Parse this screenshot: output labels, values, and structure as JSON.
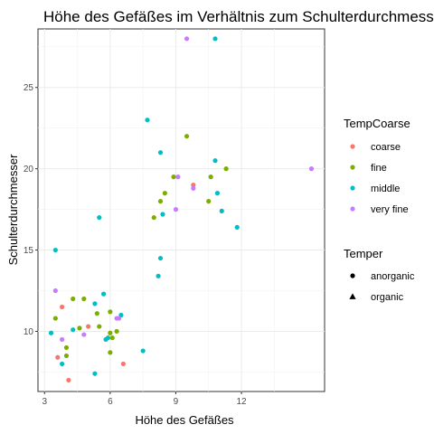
{
  "chart_data": {
    "type": "scatter",
    "title": "Höhe des Gefäßes im Verhältnis zum Schulterdurchmesser",
    "xlabel": "Höhe des Gefäßes",
    "ylabel": "Schulterdurchmesser",
    "xlim": [
      2.7,
      15.8
    ],
    "ylim": [
      6.3,
      28.6
    ],
    "xticks": [
      3,
      6,
      9,
      12
    ],
    "yticks": [
      10,
      15,
      20,
      25
    ],
    "grid": true,
    "legend_placement": "right",
    "color_legend": {
      "title": "TempCoarse",
      "entries": [
        {
          "key": "coarse",
          "label": "coarse",
          "color": "#F8766D"
        },
        {
          "key": "fine",
          "label": "fine",
          "color": "#7CAE00"
        },
        {
          "key": "middle",
          "label": "middle",
          "color": "#00BFC4"
        },
        {
          "key": "very fine",
          "label": "very fine",
          "color": "#C77CFF"
        }
      ]
    },
    "shape_legend": {
      "title": "Temper",
      "entries": [
        {
          "key": "anorganic",
          "label": "anorganic",
          "shape": "circle"
        },
        {
          "key": "organic",
          "label": "organic",
          "shape": "triangle"
        }
      ]
    },
    "points": [
      {
        "x": 9.5,
        "y": 28.0,
        "c": "very fine",
        "s": "organic"
      },
      {
        "x": 10.8,
        "y": 28.0,
        "c": "middle",
        "s": "organic"
      },
      {
        "x": 7.7,
        "y": 23.0,
        "c": "middle",
        "s": "organic"
      },
      {
        "x": 9.5,
        "y": 22.0,
        "c": "fine",
        "s": "organic"
      },
      {
        "x": 8.3,
        "y": 21.0,
        "c": "middle",
        "s": "anorganic"
      },
      {
        "x": 10.8,
        "y": 20.5,
        "c": "middle",
        "s": "anorganic"
      },
      {
        "x": 11.3,
        "y": 20.0,
        "c": "fine",
        "s": "organic"
      },
      {
        "x": 15.2,
        "y": 20.0,
        "c": "very fine",
        "s": "organic"
      },
      {
        "x": 8.9,
        "y": 19.5,
        "c": "fine",
        "s": "organic"
      },
      {
        "x": 9.1,
        "y": 19.5,
        "c": "very fine",
        "s": "anorganic"
      },
      {
        "x": 10.6,
        "y": 19.5,
        "c": "fine",
        "s": "organic"
      },
      {
        "x": 9.8,
        "y": 19.0,
        "c": "coarse",
        "s": "anorganic"
      },
      {
        "x": 9.8,
        "y": 18.8,
        "c": "very fine",
        "s": "organic"
      },
      {
        "x": 8.5,
        "y": 18.5,
        "c": "fine",
        "s": "organic"
      },
      {
        "x": 10.9,
        "y": 18.5,
        "c": "middle",
        "s": "anorganic"
      },
      {
        "x": 8.3,
        "y": 18.0,
        "c": "fine",
        "s": "organic"
      },
      {
        "x": 10.5,
        "y": 18.0,
        "c": "fine",
        "s": "organic"
      },
      {
        "x": 9.0,
        "y": 17.5,
        "c": "very fine",
        "s": "organic"
      },
      {
        "x": 11.1,
        "y": 17.4,
        "c": "middle",
        "s": "organic"
      },
      {
        "x": 8.0,
        "y": 17.0,
        "c": "fine",
        "s": "organic"
      },
      {
        "x": 8.4,
        "y": 17.2,
        "c": "middle",
        "s": "anorganic"
      },
      {
        "x": 5.5,
        "y": 17.0,
        "c": "middle",
        "s": "organic"
      },
      {
        "x": 11.8,
        "y": 16.4,
        "c": "middle",
        "s": "anorganic"
      },
      {
        "x": 3.5,
        "y": 15.0,
        "c": "middle",
        "s": "anorganic"
      },
      {
        "x": 8.3,
        "y": 14.5,
        "c": "middle",
        "s": "anorganic"
      },
      {
        "x": 8.2,
        "y": 13.4,
        "c": "middle",
        "s": "organic"
      },
      {
        "x": 3.5,
        "y": 12.5,
        "c": "very fine",
        "s": "organic"
      },
      {
        "x": 4.3,
        "y": 12.0,
        "c": "fine",
        "s": "organic"
      },
      {
        "x": 4.8,
        "y": 12.0,
        "c": "fine",
        "s": "organic"
      },
      {
        "x": 5.7,
        "y": 12.3,
        "c": "middle",
        "s": "anorganic"
      },
      {
        "x": 5.3,
        "y": 11.7,
        "c": "middle",
        "s": "organic"
      },
      {
        "x": 3.8,
        "y": 11.5,
        "c": "coarse",
        "s": "anorganic"
      },
      {
        "x": 6.0,
        "y": 11.2,
        "c": "fine",
        "s": "organic"
      },
      {
        "x": 5.4,
        "y": 11.1,
        "c": "fine",
        "s": "anorganic"
      },
      {
        "x": 6.5,
        "y": 11.0,
        "c": "middle",
        "s": "anorganic"
      },
      {
        "x": 3.5,
        "y": 10.8,
        "c": "fine",
        "s": "organic"
      },
      {
        "x": 6.3,
        "y": 10.8,
        "c": "very fine",
        "s": "organic"
      },
      {
        "x": 6.4,
        "y": 10.8,
        "c": "very fine",
        "s": "anorganic"
      },
      {
        "x": 4.6,
        "y": 10.2,
        "c": "fine",
        "s": "anorganic"
      },
      {
        "x": 5.0,
        "y": 10.3,
        "c": "coarse",
        "s": "anorganic"
      },
      {
        "x": 5.5,
        "y": 10.3,
        "c": "fine",
        "s": "organic"
      },
      {
        "x": 4.3,
        "y": 10.1,
        "c": "middle",
        "s": "organic"
      },
      {
        "x": 3.3,
        "y": 9.9,
        "c": "middle",
        "s": "anorganic"
      },
      {
        "x": 4.8,
        "y": 9.8,
        "c": "very fine",
        "s": "anorganic"
      },
      {
        "x": 6.0,
        "y": 9.9,
        "c": "fine",
        "s": "anorganic"
      },
      {
        "x": 6.3,
        "y": 10.0,
        "c": "fine",
        "s": "organic"
      },
      {
        "x": 6.1,
        "y": 9.6,
        "c": "fine",
        "s": "organic"
      },
      {
        "x": 5.8,
        "y": 9.5,
        "c": "middle",
        "s": "anorganic"
      },
      {
        "x": 5.9,
        "y": 9.6,
        "c": "middle",
        "s": "organic"
      },
      {
        "x": 3.8,
        "y": 9.5,
        "c": "very fine",
        "s": "anorganic"
      },
      {
        "x": 4.0,
        "y": 9.0,
        "c": "fine",
        "s": "organic"
      },
      {
        "x": 7.5,
        "y": 8.8,
        "c": "middle",
        "s": "organic"
      },
      {
        "x": 6.0,
        "y": 8.7,
        "c": "fine",
        "s": "organic"
      },
      {
        "x": 4.0,
        "y": 8.5,
        "c": "fine",
        "s": "anorganic"
      },
      {
        "x": 3.6,
        "y": 8.4,
        "c": "coarse",
        "s": "anorganic"
      },
      {
        "x": 3.8,
        "y": 8.0,
        "c": "middle",
        "s": "organic"
      },
      {
        "x": 6.6,
        "y": 8.0,
        "c": "coarse",
        "s": "anorganic"
      },
      {
        "x": 5.3,
        "y": 7.4,
        "c": "middle",
        "s": "anorganic"
      },
      {
        "x": 4.1,
        "y": 7.0,
        "c": "coarse",
        "s": "anorganic"
      }
    ]
  }
}
